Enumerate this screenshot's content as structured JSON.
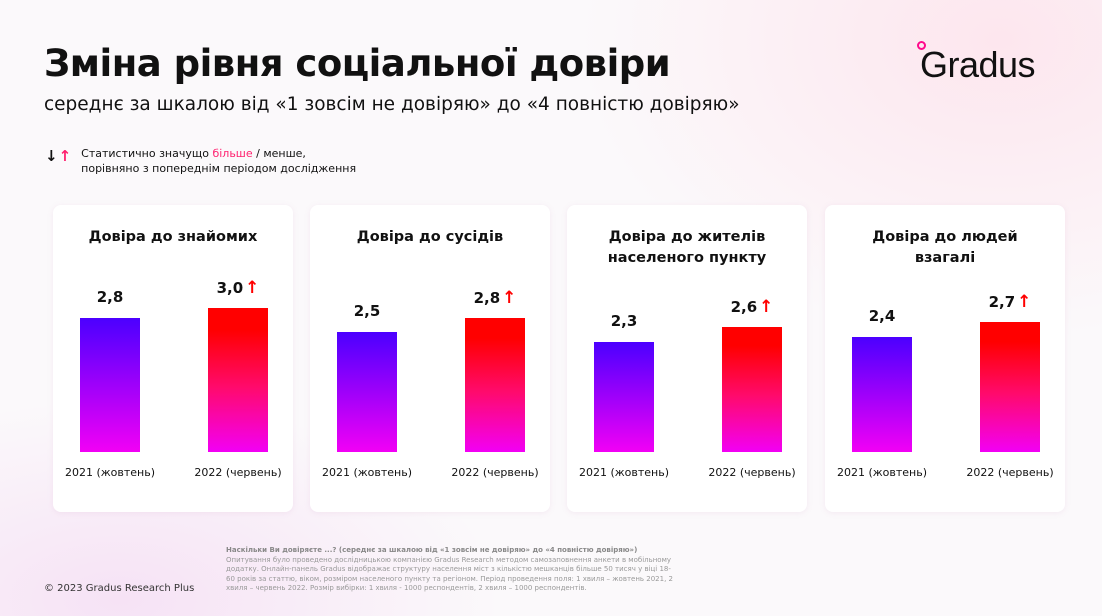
{
  "header": {
    "title": "Зміна рівня соціальної довіри",
    "subtitle": "середнє за шкалою від «1 зовсім не довіряю» до «4 повністю довіряю»"
  },
  "logo": {
    "text": "Gradus"
  },
  "legend": {
    "prefix": "Статистично значущо ",
    "more": "більше",
    "suffix": " / менше,",
    "line2": "порівняно з попереднім періодом дослідження",
    "arrow_down": "↓",
    "arrow_up": "↑"
  },
  "colors": {
    "accent": "#ff1f6e",
    "bar2021": "#4b00ff",
    "bar2022": "#ff0000",
    "arrow": "#ff0000"
  },
  "chart_data": [
    {
      "type": "bar",
      "title": "Довіра до знайомих",
      "categories": [
        "2021 (жовтень)",
        "2022 (червень)"
      ],
      "values": [
        2.8,
        3.0
      ],
      "labels": [
        "2,8",
        "3,0"
      ],
      "significant_up": [
        false,
        true
      ],
      "ylim": [
        0,
        4
      ]
    },
    {
      "type": "bar",
      "title": "Довіра до сусідів",
      "categories": [
        "2021 (жовтень)",
        "2022 (червень)"
      ],
      "values": [
        2.5,
        2.8
      ],
      "labels": [
        "2,5",
        "2,8"
      ],
      "significant_up": [
        false,
        true
      ],
      "ylim": [
        0,
        4
      ]
    },
    {
      "type": "bar",
      "title": "Довіра до жителів населеного пункту",
      "categories": [
        "2021 (жовтень)",
        "2022 (червень)"
      ],
      "values": [
        2.3,
        2.6
      ],
      "labels": [
        "2,3",
        "2,6"
      ],
      "significant_up": [
        false,
        true
      ],
      "ylim": [
        0,
        4
      ]
    },
    {
      "type": "bar",
      "title": "Довіра до людей взагалі",
      "categories": [
        "2021 (жовтень)",
        "2022 (червень)"
      ],
      "values": [
        2.4,
        2.7
      ],
      "labels": [
        "2,4",
        "2,7"
      ],
      "significant_up": [
        false,
        true
      ],
      "ylim": [
        0,
        4
      ]
    }
  ],
  "footer": {
    "copyright": "© 2023 Gradus Research Plus",
    "note_title": "Наскільки Ви довіряєте ...? (середнє за шкалою від «1 зовсім не довіряю» до «4 повністю довіряю»)",
    "note_body": "Опитування було проведено дослідницькою компанією Gradus Research методом самозаповнення анкети в мобільному додатку. Онлайн-панель Gradus відображає структуру населення міст з кількістю мешканців більше 50 тисяч у віці 18-60 років за статтю, віком, розміром населеного пункту та регіоном. Період проведення поля: 1 хвиля – жовтень 2021, 2 хвиля – червень 2022. Розмір вибірки: 1 хвиля - 1000 респондентів, 2 хвиля – 1000 респондентів."
  }
}
